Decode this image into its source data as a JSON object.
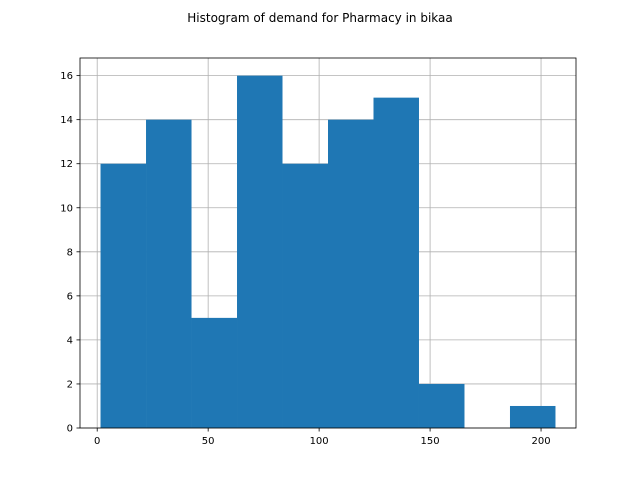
{
  "chart_data": {
    "type": "bar",
    "title": "Histogram of demand for Pharmacy in bikaa",
    "xlabel": "",
    "ylabel": "",
    "bins": [
      {
        "start": 1.5,
        "end": 22.0,
        "count": 12
      },
      {
        "start": 22.0,
        "end": 42.5,
        "count": 14
      },
      {
        "start": 42.5,
        "end": 63.0,
        "count": 5
      },
      {
        "start": 63.0,
        "end": 83.5,
        "count": 16
      },
      {
        "start": 83.5,
        "end": 104.0,
        "count": 12
      },
      {
        "start": 104.0,
        "end": 124.5,
        "count": 14
      },
      {
        "start": 124.5,
        "end": 145.0,
        "count": 15
      },
      {
        "start": 145.0,
        "end": 165.5,
        "count": 2
      },
      {
        "start": 165.5,
        "end": 186.0,
        "count": 0
      },
      {
        "start": 186.0,
        "end": 206.5,
        "count": 1
      }
    ],
    "xlim": [
      -7.75,
      215.75
    ],
    "ylim": [
      0,
      16.8
    ],
    "xticks": [
      0,
      50,
      100,
      150,
      200
    ],
    "yticks": [
      0,
      2,
      4,
      6,
      8,
      10,
      12,
      14,
      16
    ],
    "grid": true,
    "bar_color": "#1f77b4",
    "grid_color": "#b0b0b0"
  }
}
